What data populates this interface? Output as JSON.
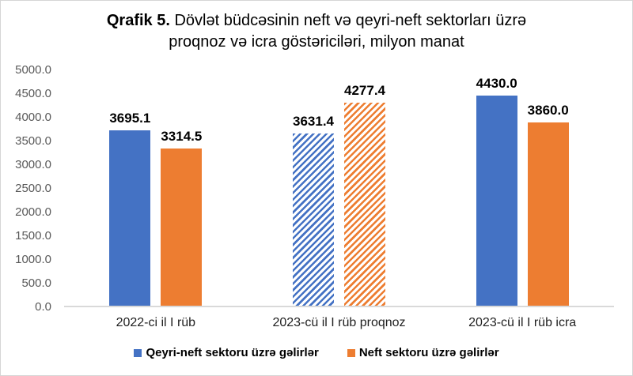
{
  "title": {
    "line1_bold": "Qrafik 5.",
    "line1_rest": " Dövlət büdcəsinin neft və qeyri-neft sektorları üzrə",
    "line2": "proqnoz və icra göstəriciləri, milyon manat"
  },
  "chart_data": {
    "type": "bar",
    "title": "Qrafik 5. Dövlət büdcəsinin neft və qeyri-neft sektorları üzrə proqnoz və icra göstəriciləri, milyon manat",
    "categories": [
      "2022-ci il I rüb",
      "2023-cü il I rüb proqnoz",
      "2023-cü il I rüb icra"
    ],
    "series": [
      {
        "name": "Qeyri-neft sektoru üzrə gəlirlər",
        "color": "#4472C4",
        "values": [
          3695.1,
          3631.4,
          4430.0
        ]
      },
      {
        "name": "Neft sektoru üzrə gəlirlər",
        "color": "#ED7D31",
        "values": [
          3314.5,
          4277.4,
          3860.0
        ]
      }
    ],
    "data_labels": [
      [
        "3695.1",
        "3631.4",
        "4430.0"
      ],
      [
        "3314.5",
        "4277.4",
        "3860.0"
      ]
    ],
    "hatched_category_index": 1,
    "y_ticks": [
      "0.0",
      "500.0",
      "1000.0",
      "1500.0",
      "2000.0",
      "2500.0",
      "3000.0",
      "3500.0",
      "4000.0",
      "4500.0",
      "5000.0"
    ],
    "y_tick_values": [
      0,
      500,
      1000,
      1500,
      2000,
      2500,
      3000,
      3500,
      4000,
      4500,
      5000
    ],
    "ylim": [
      0,
      5000
    ],
    "grid": false,
    "legend_position": "bottom",
    "colors": {
      "series1": "#4472C4",
      "series2": "#ED7D31",
      "axis_line": "#d9d9d9",
      "y_tick_text": "#595959",
      "x_tick_text": "#1f1f1f",
      "data_label_text": "#000000"
    }
  }
}
